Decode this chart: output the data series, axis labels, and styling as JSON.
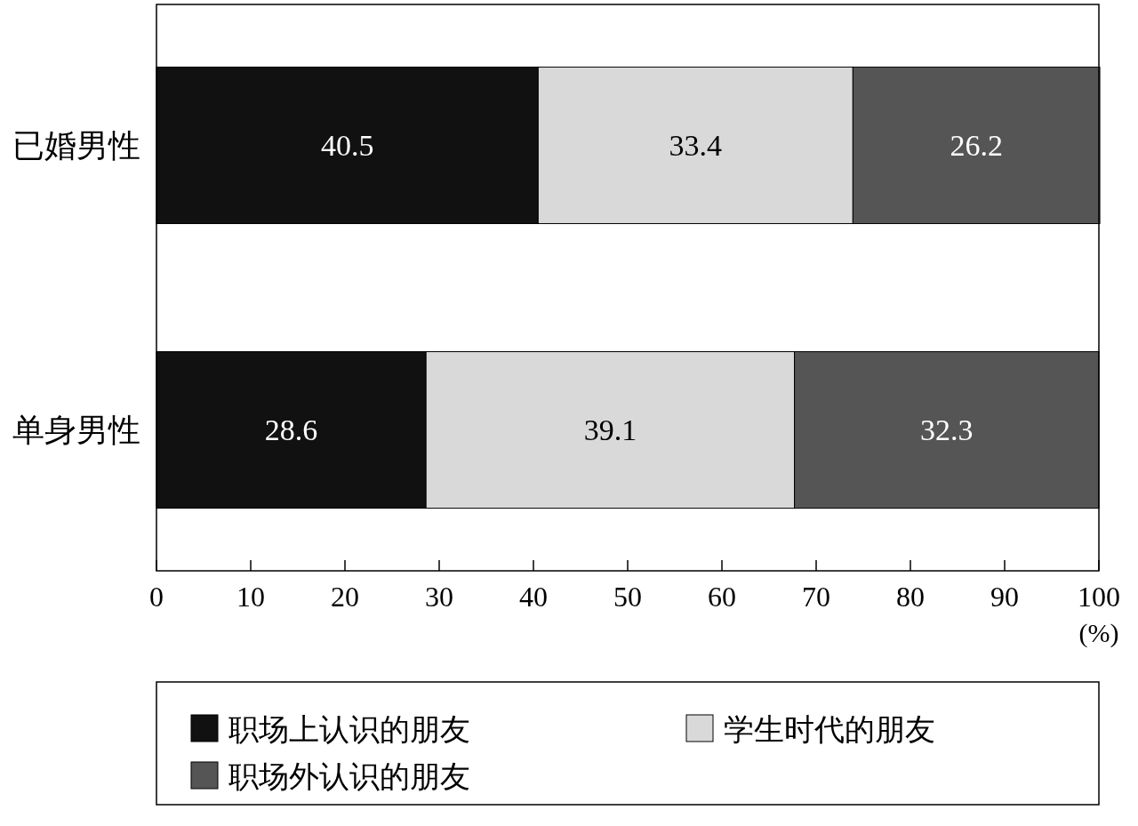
{
  "chart_data": {
    "type": "bar",
    "orientation": "horizontal",
    "stacked": true,
    "categories": [
      "已婚男性",
      "单身男性"
    ],
    "series": [
      {
        "name": "职场上认识的朋友",
        "color": "#111111",
        "values": [
          40.5,
          28.6
        ]
      },
      {
        "name": "学生时代的朋友",
        "color": "#d9d9d9",
        "values": [
          33.4,
          39.1
        ]
      },
      {
        "name": "职场外认识的朋友",
        "color": "#555555",
        "values": [
          26.2,
          32.3
        ]
      }
    ],
    "xlim": [
      0,
      100
    ],
    "xticks": [
      0,
      10,
      20,
      30,
      40,
      50,
      60,
      70,
      80,
      90,
      100
    ],
    "xlabel": "(%)",
    "data_labels": true,
    "grid": false,
    "legend": "bottom"
  }
}
